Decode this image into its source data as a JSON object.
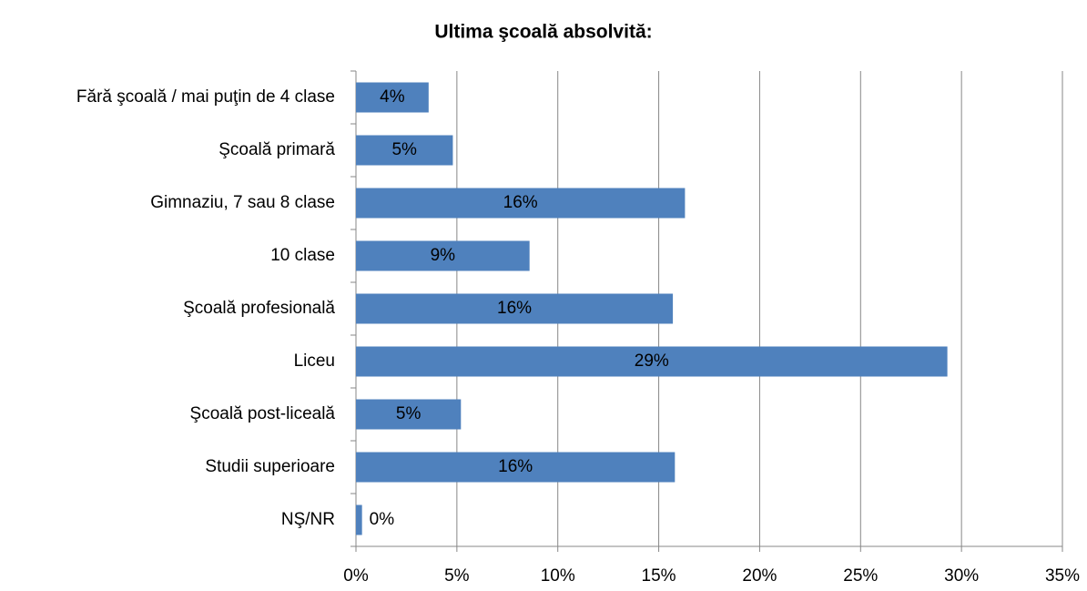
{
  "chart_data": {
    "type": "barh",
    "title": "Ultima şcoală absolvită:",
    "categories": [
      "Fără şcoală / mai puţin de 4 clase",
      "Şcoală primară",
      "Gimnaziu, 7 sau 8 clase",
      "10 clase",
      "Şcoală profesională",
      "Liceu",
      "Şcoală post-liceală",
      "Studii superioare",
      "NŞ/NR"
    ],
    "values": [
      3.6,
      4.8,
      16.3,
      8.6,
      15.7,
      29.3,
      5.2,
      15.8,
      0.3
    ],
    "value_labels": [
      "4%",
      "5%",
      "16%",
      "9%",
      "16%",
      "29%",
      "5%",
      "16%",
      "0%"
    ],
    "color": "#4f81bd",
    "xlim": [
      0,
      35
    ],
    "xticks": [
      {
        "value": 0,
        "label": "0%"
      },
      {
        "value": 5,
        "label": "5%"
      },
      {
        "value": 10,
        "label": "10%"
      },
      {
        "value": 15,
        "label": "15%"
      },
      {
        "value": 20,
        "label": "20%"
      },
      {
        "value": 25,
        "label": "25%"
      },
      {
        "value": 30,
        "label": "30%"
      },
      {
        "value": 35,
        "label": "35%"
      }
    ],
    "grid": true
  }
}
